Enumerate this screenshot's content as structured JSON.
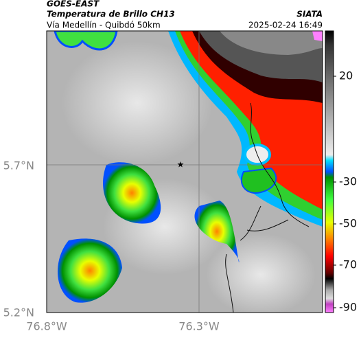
{
  "header": {
    "source": "GOES-EAST",
    "title": "Temperatura de Brillo CH13",
    "subtitle": "Vía Medellín - Quibdó 50km",
    "brand": "SIATA",
    "timestamp": "2025-02-24 16:49"
  },
  "map": {
    "lat_labels": [
      "5.7°N",
      "5.2°N"
    ],
    "lon_labels": [
      "76.8°W",
      "76.3°W"
    ]
  },
  "colorbar": {
    "tick_labels": [
      "20",
      "-30",
      "-50",
      "-70",
      "-90"
    ]
  }
}
